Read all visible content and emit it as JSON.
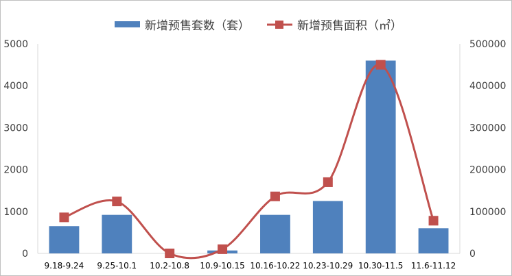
{
  "chart_data": {
    "type": "bar",
    "categories": [
      "9.18-9.24",
      "9.25-10.1",
      "10.2-10.8",
      "10.9-10.15",
      "10.16-10.22",
      "10.23-10.29",
      "10.30-11.5",
      "11.6-11.12"
    ],
    "series": [
      {
        "name": "新增预售套数（套）",
        "type": "bar",
        "axis": "left",
        "color": "#4f81bd",
        "values": [
          650,
          920,
          0,
          70,
          920,
          1250,
          4600,
          600
        ]
      },
      {
        "name": "新增预售面积（㎡）",
        "type": "line",
        "axis": "right",
        "color": "#c0504d",
        "smooth": true,
        "values": [
          86000,
          124000,
          0,
          10000,
          136000,
          170000,
          450000,
          78000
        ]
      }
    ],
    "y_left": {
      "min": 0,
      "max": 5000,
      "ticks": [
        "0",
        "1000",
        "2000",
        "3000",
        "4000",
        "5000"
      ]
    },
    "y_right": {
      "min": 0,
      "max": 500000,
      "ticks": [
        "0",
        "100000",
        "200000",
        "300000",
        "400000",
        "500000"
      ]
    },
    "grid": false,
    "legend_position": "top"
  }
}
